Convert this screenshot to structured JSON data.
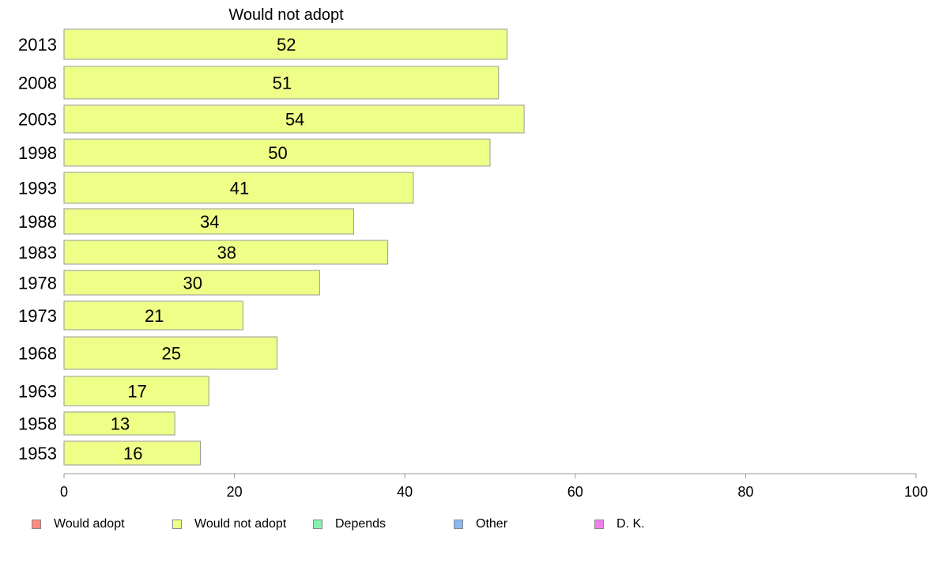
{
  "chart_data": {
    "type": "bar",
    "orientation": "horizontal",
    "title": "Would not adopt",
    "categories": [
      "2013",
      "2008",
      "2003",
      "1998",
      "1993",
      "1988",
      "1983",
      "1978",
      "1973",
      "1968",
      "1963",
      "1958",
      "1953"
    ],
    "series": [
      {
        "name": "Would not adopt",
        "values": [
          52,
          51,
          54,
          50,
          41,
          34,
          38,
          30,
          21,
          25,
          17,
          13,
          16
        ],
        "color": "#eeff88"
      }
    ],
    "xlim": [
      0,
      100
    ],
    "xticks": [
      0,
      20,
      40,
      60,
      80,
      100
    ],
    "grid": false,
    "legend": {
      "placement": "bottom",
      "entries": [
        {
          "label": "Would adopt",
          "color": "#ff8a80"
        },
        {
          "label": "Would not adopt",
          "color": "#eeff88"
        },
        {
          "label": "Depends",
          "color": "#88f0b0"
        },
        {
          "label": "Other",
          "color": "#88b8f0"
        },
        {
          "label": "D. K.",
          "color": "#ee80ee"
        }
      ]
    }
  }
}
